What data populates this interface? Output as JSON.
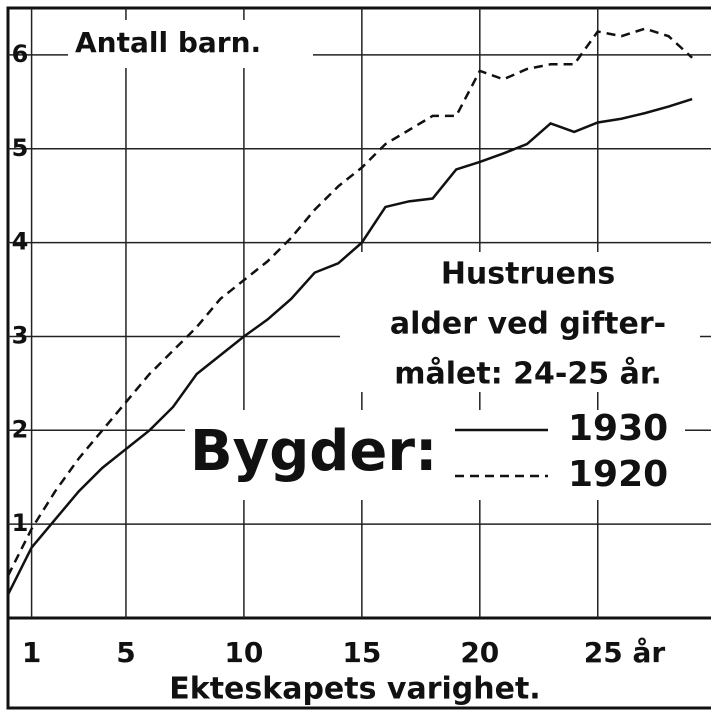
{
  "chart_data": {
    "type": "line",
    "y_label": "Antall barn.",
    "x_label": "Ekteskapets varighet.",
    "annotation": [
      "Hustruens",
      "alder ved gifter-",
      "målet: 24-25 år."
    ],
    "legend_title": "Bygder:",
    "x": [
      0,
      1,
      2,
      3,
      4,
      5,
      6,
      7,
      8,
      9,
      10,
      11,
      12,
      13,
      14,
      15,
      16,
      17,
      18,
      19,
      20,
      21,
      22,
      23,
      24,
      25,
      26,
      27,
      28,
      29
    ],
    "series": [
      {
        "name": "1930",
        "color": "#111111",
        "dash": false,
        "values": [
          0.25,
          0.75,
          1.05,
          1.35,
          1.6,
          1.8,
          2.0,
          2.25,
          2.6,
          2.8,
          3.0,
          3.18,
          3.4,
          3.68,
          3.78,
          4.0,
          4.38,
          4.44,
          4.47,
          4.78,
          4.86,
          4.95,
          5.05,
          5.27,
          5.18,
          5.28,
          5.32,
          5.38,
          5.45,
          5.53
        ]
      },
      {
        "name": "1920",
        "color": "#111111",
        "dash": true,
        "values": [
          0.45,
          0.95,
          1.35,
          1.7,
          2.0,
          2.3,
          2.6,
          2.85,
          3.1,
          3.4,
          3.6,
          3.8,
          4.05,
          4.35,
          4.6,
          4.8,
          5.05,
          5.2,
          5.35,
          5.35,
          5.83,
          5.74,
          5.85,
          5.9,
          5.9,
          6.25,
          6.2,
          6.28,
          6.2,
          5.97
        ]
      }
    ],
    "xlim": [
      0,
      29.8
    ],
    "xticks": [
      1,
      5,
      10,
      15,
      20,
      {
        "value": 25,
        "label": "25 år"
      }
    ],
    "ylim": [
      0,
      6.5
    ],
    "yticks": [
      1,
      2,
      3,
      4,
      5,
      6
    ],
    "grid": true
  }
}
